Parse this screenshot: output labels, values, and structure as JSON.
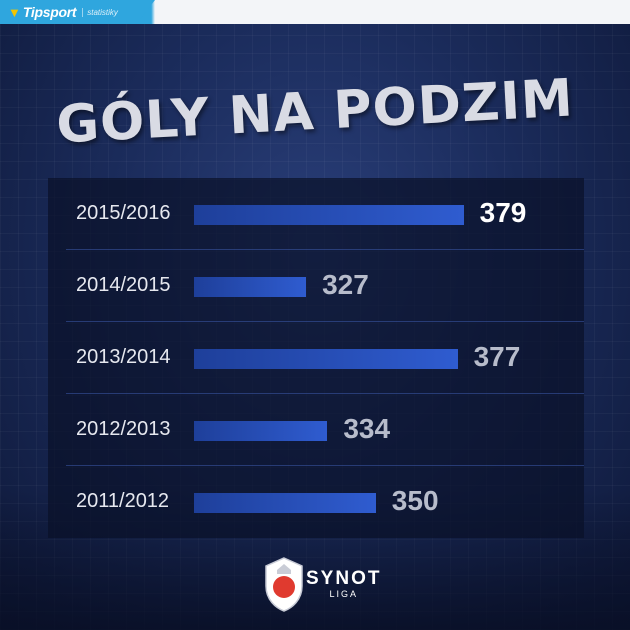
{
  "header": {
    "brand_name": "Tipsport",
    "brand_sub": "statistiky"
  },
  "title": "GÓLY NA PODZIM",
  "chart_data": {
    "type": "bar",
    "orientation": "horizontal",
    "title": "GÓLY NA PODZIM",
    "categories": [
      "2015/2016",
      "2014/2015",
      "2013/2014",
      "2012/2013",
      "2011/2012"
    ],
    "values": [
      379,
      327,
      377,
      334,
      350
    ],
    "xlim": [
      290,
      380
    ],
    "grid": false,
    "colors": {
      "bar": "#2f5cd0",
      "highlight_value": "#ffffff",
      "value": "#b7bccb"
    }
  },
  "footer": {
    "league_name": "SYNOT",
    "league_sub": "LIGA"
  },
  "icons": [
    "tipsport-logo-icon",
    "synot-liga-crest-icon"
  ]
}
